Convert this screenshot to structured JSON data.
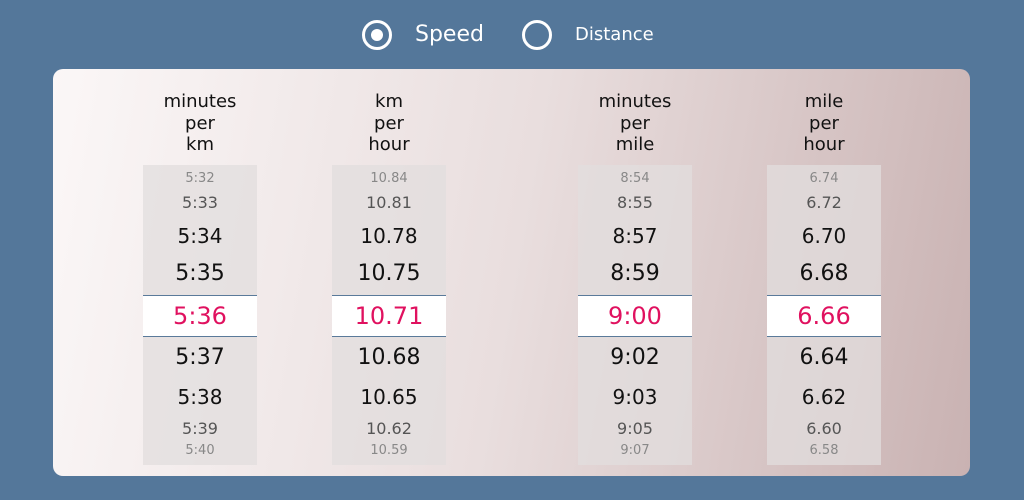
{
  "mode_selector": {
    "options": [
      {
        "label": "Speed",
        "selected": true
      },
      {
        "label": "Distance",
        "selected": false
      }
    ]
  },
  "columns": [
    {
      "header": [
        "minutes",
        "per",
        "km"
      ],
      "values": [
        "5:32",
        "5:33",
        "5:34",
        "5:35",
        "5:36",
        "5:37",
        "5:38",
        "5:39",
        "5:40"
      ]
    },
    {
      "header": [
        "km",
        "per",
        "hour"
      ],
      "values": [
        "10.84",
        "10.81",
        "10.78",
        "10.75",
        "10.71",
        "10.68",
        "10.65",
        "10.62",
        "10.59"
      ]
    },
    {
      "header": [
        "minutes",
        "per",
        "mile"
      ],
      "values": [
        "8:54",
        "8:55",
        "8:57",
        "8:59",
        "9:00",
        "9:02",
        "9:03",
        "9:05",
        "9:07"
      ]
    },
    {
      "header": [
        "mile",
        "per",
        "hour"
      ],
      "values": [
        "6.74",
        "6.72",
        "6.70",
        "6.68",
        "6.66",
        "6.64",
        "6.62",
        "6.60",
        "6.58"
      ]
    }
  ]
}
